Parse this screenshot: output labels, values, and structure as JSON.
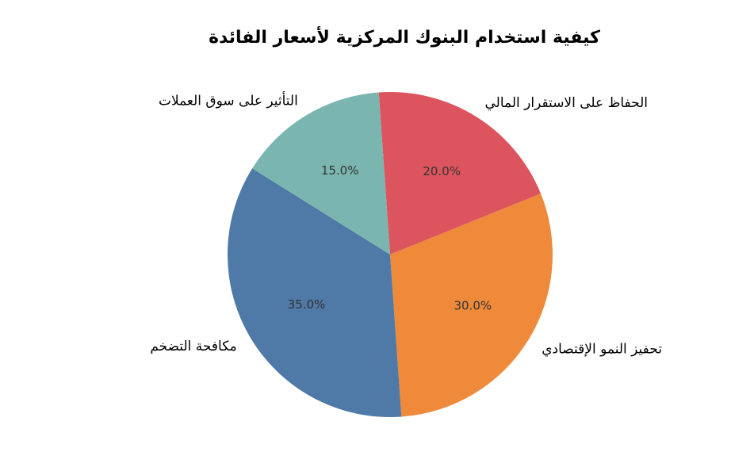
{
  "chart_data": {
    "type": "pie",
    "title": "كيفية استخدام البنوك المركزية لأسعار الفائدة",
    "categories": [
      "الحفاظ على الاستقرار المالي",
      "تحفيز النمو الإقتصادي",
      "مكافحة التضخم",
      "التأثير على سوق العملات"
    ],
    "values": [
      20,
      30,
      35,
      15
    ],
    "value_labels": [
      "20.0%",
      "30.0%",
      "35.0%",
      "15.0%"
    ],
    "colors": [
      "#dc555e",
      "#ee8a3a",
      "#4f79a7",
      "#7ab5b0"
    ]
  }
}
